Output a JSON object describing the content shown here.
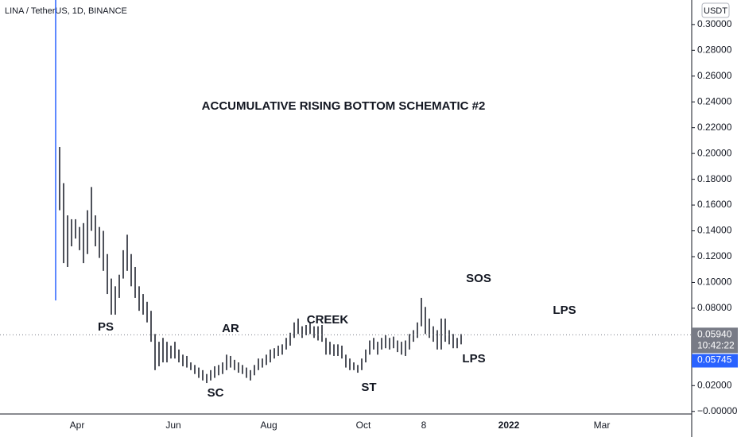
{
  "chart_data": {
    "type": "candlestick",
    "title": "LINA / TetherUS, 1D, BINANCE",
    "currency": "USDT",
    "annotations": [
      "ACCUMULATIVE RISING BOTTOM SCHEMATIC #2",
      "PS",
      "AR",
      "CREEK",
      "SC",
      "ST",
      "SOS",
      "LPS",
      "LPS"
    ],
    "xtick_labels": [
      "Apr",
      "Jun",
      "Aug",
      "Oct",
      "8",
      "2022",
      "Mar"
    ],
    "ylim": [
      -0.002,
      0.319
    ],
    "yticks": [
      {
        "value": 0,
        "label": "−0.00000"
      },
      {
        "value": 0.02,
        "label": "0.02000"
      },
      {
        "value": 0.04,
        "label": "0.04000"
      },
      {
        "value": 0.06,
        "label": "0.06000"
      },
      {
        "value": 0.08,
        "label": "0.08000"
      },
      {
        "value": 0.1,
        "label": "0.10000"
      },
      {
        "value": 0.12,
        "label": "0.12000"
      },
      {
        "value": 0.14,
        "label": "0.14000"
      },
      {
        "value": 0.16,
        "label": "0.16000"
      },
      {
        "value": 0.18,
        "label": "0.18000"
      },
      {
        "value": 0.2,
        "label": "0.20000"
      },
      {
        "value": 0.22,
        "label": "0.22000"
      },
      {
        "value": 0.24,
        "label": "0.24000"
      },
      {
        "value": 0.26,
        "label": "0.26000"
      },
      {
        "value": 0.28,
        "label": "0.28000"
      },
      {
        "value": 0.3,
        "label": "0.30000"
      }
    ],
    "last_price": {
      "value": 0.0594,
      "label": "0.05940",
      "countdown": "10:42:22"
    },
    "marker_price": {
      "value": 0.05745,
      "label": "0.05745"
    },
    "color": "#131722",
    "high": [
      0.319,
      0.205,
      0.177,
      0.152,
      0.149,
      0.149,
      0.143,
      0.146,
      0.156,
      0.174,
      0.152,
      0.143,
      0.14,
      0.122,
      0.103,
      0.097,
      0.106,
      0.125,
      0.137,
      0.122,
      0.112,
      0.097,
      0.091,
      0.085,
      0.078,
      0.06,
      0.054,
      0.057,
      0.054,
      0.051,
      0.054,
      0.048,
      0.044,
      0.043,
      0.038,
      0.036,
      0.034,
      0.032,
      0.029,
      0.032,
      0.035,
      0.036,
      0.038,
      0.044,
      0.043,
      0.04,
      0.038,
      0.036,
      0.034,
      0.032,
      0.036,
      0.041,
      0.041,
      0.044,
      0.048,
      0.049,
      0.051,
      0.052,
      0.057,
      0.061,
      0.069,
      0.072,
      0.066,
      0.067,
      0.069,
      0.066,
      0.066,
      0.067,
      0.057,
      0.054,
      0.052,
      0.052,
      0.051,
      0.044,
      0.041,
      0.038,
      0.036,
      0.041,
      0.048,
      0.055,
      0.057,
      0.054,
      0.057,
      0.059,
      0.057,
      0.058,
      0.055,
      0.054,
      0.055,
      0.06,
      0.063,
      0.069,
      0.088,
      0.081,
      0.072,
      0.066,
      0.063,
      0.072,
      0.072,
      0.063,
      0.06,
      0.057,
      0.06
    ],
    "low": [
      0.086,
      0.156,
      0.115,
      0.112,
      0.128,
      0.134,
      0.125,
      0.115,
      0.122,
      0.14,
      0.128,
      0.119,
      0.109,
      0.091,
      0.075,
      0.075,
      0.088,
      0.103,
      0.109,
      0.097,
      0.088,
      0.078,
      0.075,
      0.069,
      0.054,
      0.032,
      0.035,
      0.038,
      0.038,
      0.041,
      0.041,
      0.038,
      0.035,
      0.034,
      0.032,
      0.029,
      0.026,
      0.024,
      0.022,
      0.024,
      0.026,
      0.028,
      0.029,
      0.032,
      0.034,
      0.032,
      0.03,
      0.029,
      0.026,
      0.024,
      0.028,
      0.032,
      0.034,
      0.036,
      0.038,
      0.041,
      0.043,
      0.044,
      0.048,
      0.051,
      0.057,
      0.06,
      0.057,
      0.059,
      0.06,
      0.057,
      0.055,
      0.054,
      0.044,
      0.044,
      0.043,
      0.043,
      0.041,
      0.034,
      0.032,
      0.032,
      0.03,
      0.032,
      0.038,
      0.044,
      0.048,
      0.044,
      0.048,
      0.049,
      0.048,
      0.049,
      0.046,
      0.044,
      0.043,
      0.048,
      0.054,
      0.057,
      0.066,
      0.06,
      0.057,
      0.054,
      0.048,
      0.048,
      0.054,
      0.052,
      0.049,
      0.049,
      0.052
    ]
  }
}
